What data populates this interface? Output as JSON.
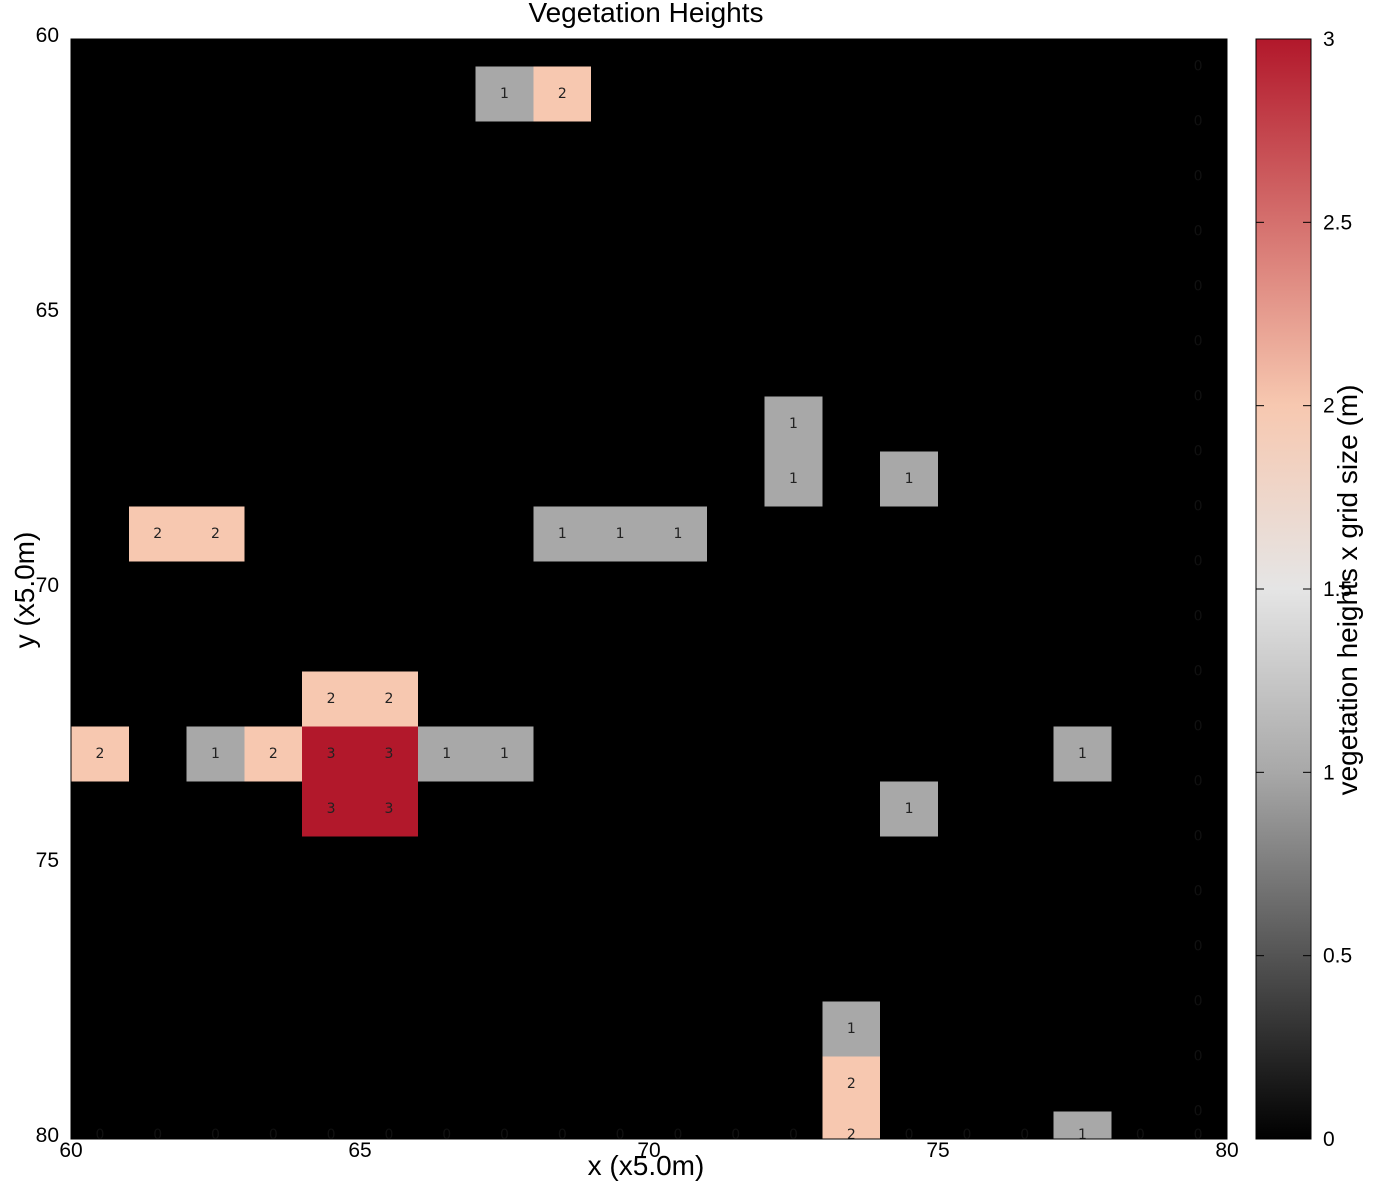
{
  "chart_data": {
    "type": "heatmap",
    "title": "Vegetation Heights",
    "xlabel": "x (x5.0m)",
    "ylabel": "y (x5.0m)",
    "colorbar_label": "vegetation heights x grid size (m)",
    "xlim": [
      60,
      80
    ],
    "ylim": [
      60,
      80
    ],
    "y_inverted": true,
    "x_ticks": [
      "60",
      "65",
      "70",
      "75",
      "80"
    ],
    "y_ticks": [
      "60",
      "65",
      "70",
      "75",
      "80"
    ],
    "colorbar_range": [
      0,
      3
    ],
    "colorbar_ticks": [
      "0",
      "0.5",
      "1",
      "1.5",
      "2",
      "2.5",
      "3"
    ],
    "colorscale": [
      "#000000",
      "#a8a8a8",
      "#f7c8b0",
      "#b2182b"
    ],
    "cell_grid": {
      "x_start": 60.5,
      "x_step": 1,
      "x_count": 20,
      "y_start": 60.5,
      "y_step": 1,
      "y_count": 20,
      "fill_value": 0
    },
    "nonzero_cells": [
      {
        "x": 67.5,
        "y": 61,
        "value": 1
      },
      {
        "x": 68.5,
        "y": 61,
        "value": 2
      },
      {
        "x": 72.5,
        "y": 67,
        "value": 1
      },
      {
        "x": 72.5,
        "y": 68,
        "value": 1
      },
      {
        "x": 74.5,
        "y": 68,
        "value": 1
      },
      {
        "x": 61.5,
        "y": 69,
        "value": 2
      },
      {
        "x": 62.5,
        "y": 69,
        "value": 2
      },
      {
        "x": 68.5,
        "y": 69,
        "value": 1
      },
      {
        "x": 69.5,
        "y": 69,
        "value": 1
      },
      {
        "x": 70.5,
        "y": 69,
        "value": 1
      },
      {
        "x": 64.5,
        "y": 72,
        "value": 2
      },
      {
        "x": 65.5,
        "y": 72,
        "value": 2
      },
      {
        "x": 60.5,
        "y": 73,
        "value": 2
      },
      {
        "x": 62.5,
        "y": 73,
        "value": 1
      },
      {
        "x": 63.5,
        "y": 73,
        "value": 2
      },
      {
        "x": 64.5,
        "y": 73,
        "value": 3
      },
      {
        "x": 65.5,
        "y": 73,
        "value": 3
      },
      {
        "x": 66.5,
        "y": 73,
        "value": 1
      },
      {
        "x": 67.5,
        "y": 73,
        "value": 1
      },
      {
        "x": 77.5,
        "y": 73,
        "value": 1
      },
      {
        "x": 64.5,
        "y": 74,
        "value": 3
      },
      {
        "x": 65.5,
        "y": 74,
        "value": 3
      },
      {
        "x": 74.5,
        "y": 74,
        "value": 1
      },
      {
        "x": 73.5,
        "y": 78,
        "value": 1
      },
      {
        "x": 73.5,
        "y": 79,
        "value": 2
      },
      {
        "x": 73.5,
        "y": 80,
        "value": 2
      },
      {
        "x": 77.5,
        "y": 80,
        "value": 1
      }
    ]
  }
}
